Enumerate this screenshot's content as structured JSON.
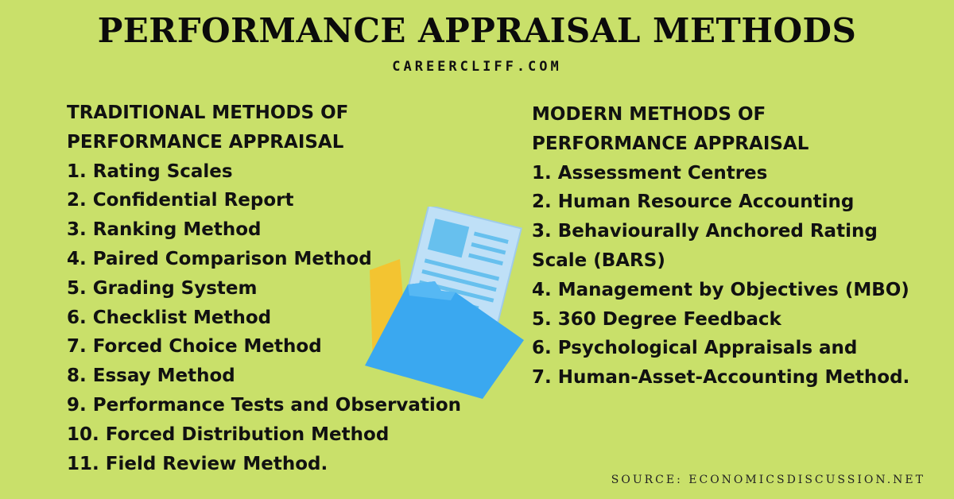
{
  "title": "PERFORMANCE APPRAISAL METHODS",
  "subtitle": "CAREERCLIFF.COM",
  "traditional": {
    "heading": [
      "TRADITIONAL METHODS OF",
      "PERFORMANCE APPRAISAL"
    ],
    "items": [
      "1. Rating Scales",
      "2. Confidential Report",
      "3. Ranking Method",
      "4. Paired Comparison Method",
      "5. Grading System",
      "6. Checklist Method",
      "7. Forced Choice Method",
      "8. Essay Method",
      "9. Performance Tests and Observation",
      "10. Forced Distribution Method",
      "11. Field Review Method."
    ]
  },
  "modern": {
    "heading": [
      "MODERN METHODS OF",
      "PERFORMANCE APPRAISAL"
    ],
    "items": [
      "1. Assessment Centres",
      "2. Human Resource Accounting",
      "3. Behaviourally Anchored Rating",
      "Scale (BARS)",
      "4. Management by Objectives (MBO)",
      "5. 360 Degree Feedback",
      "6. Psychological Appraisals and",
      "7. Human-Asset-Accounting Method."
    ]
  },
  "source": "SOURCE: ECONOMICSDISCUSSION.NET",
  "colors": {
    "background": "#c9e06a",
    "folder": "#3aa8f0",
    "paper": "#bfe0f7",
    "back_folder": "#f3c431"
  },
  "illustration_icon": "folder-with-documents-icon"
}
